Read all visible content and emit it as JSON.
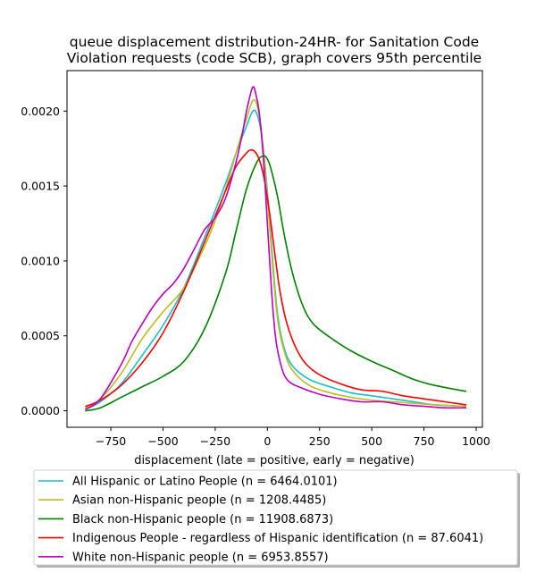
{
  "chart_data": {
    "type": "line",
    "title_lines": [
      "queue displacement distribution-24HR-  for Sanitation Code",
      "Violation  requests (code SCB), graph covers 95th percentile"
    ],
    "xlabel": "displacement (late = positive, early = negative)",
    "ylabel": "",
    "xlim": [
      -960,
      1030
    ],
    "ylim": [
      -0.00011,
      0.00227
    ],
    "x_ticks": [
      -750,
      -500,
      -250,
      0,
      250,
      500,
      750,
      1000
    ],
    "x_tick_labels": [
      "−750",
      "−500",
      "−250",
      "0",
      "250",
      "500",
      "750",
      "1000"
    ],
    "y_ticks": [
      0.0,
      0.0005,
      0.001,
      0.0015,
      0.002
    ],
    "y_tick_labels": [
      "0.0000",
      "0.0005",
      "0.0010",
      "0.0015",
      "0.0020"
    ],
    "grid": false,
    "legend_position": "below",
    "series": [
      {
        "name": "All Hispanic or Latino People (n = 6464.0101)",
        "color": "#17becf",
        "points": [
          [
            -870,
            1e-05
          ],
          [
            -800,
            6e-05
          ],
          [
            -700,
            0.00018
          ],
          [
            -600,
            0.00037
          ],
          [
            -500,
            0.00057
          ],
          [
            -400,
            0.00082
          ],
          [
            -300,
            0.00116
          ],
          [
            -200,
            0.00152
          ],
          [
            -150,
            0.00172
          ],
          [
            -100,
            0.0019
          ],
          [
            -70,
            0.002
          ],
          [
            -50,
            0.00198
          ],
          [
            -30,
            0.00186
          ],
          [
            -10,
            0.00162
          ],
          [
            10,
            0.00128
          ],
          [
            30,
            0.00092
          ],
          [
            50,
            0.00063
          ],
          [
            80,
            0.00042
          ],
          [
            120,
            0.0003
          ],
          [
            200,
            0.00021
          ],
          [
            300,
            0.00016
          ],
          [
            400,
            0.00012
          ],
          [
            500,
            0.0001
          ],
          [
            600,
            8e-05
          ],
          [
            700,
            6e-05
          ],
          [
            800,
            4e-05
          ],
          [
            950,
            3e-05
          ]
        ]
      },
      {
        "name": "Asian non-Hispanic people (n = 1208.4485)",
        "color": "#bcbd22",
        "points": [
          [
            -870,
            2e-05
          ],
          [
            -800,
            8e-05
          ],
          [
            -700,
            0.00025
          ],
          [
            -600,
            0.00048
          ],
          [
            -500,
            0.00066
          ],
          [
            -400,
            0.00082
          ],
          [
            -300,
            0.0011
          ],
          [
            -250,
            0.00127
          ],
          [
            -200,
            0.00148
          ],
          [
            -150,
            0.00172
          ],
          [
            -100,
            0.00195
          ],
          [
            -70,
            0.00207
          ],
          [
            -50,
            0.00204
          ],
          [
            -30,
            0.00188
          ],
          [
            -10,
            0.0016
          ],
          [
            10,
            0.00124
          ],
          [
            30,
            0.00088
          ],
          [
            50,
            0.0006
          ],
          [
            80,
            0.0004
          ],
          [
            120,
            0.00027
          ],
          [
            200,
            0.00017
          ],
          [
            300,
            0.00012
          ],
          [
            400,
            9e-05
          ],
          [
            500,
            7e-05
          ],
          [
            600,
            6e-05
          ],
          [
            700,
            5e-05
          ],
          [
            800,
            4e-05
          ],
          [
            950,
            3e-05
          ]
        ]
      },
      {
        "name": "Black non-Hispanic people (n = 11908.6873)",
        "color": "#008000",
        "points": [
          [
            -870,
            0.0
          ],
          [
            -800,
            2e-05
          ],
          [
            -700,
            9e-05
          ],
          [
            -600,
            0.00016
          ],
          [
            -500,
            0.00023
          ],
          [
            -400,
            0.00033
          ],
          [
            -300,
            0.00055
          ],
          [
            -200,
            0.00092
          ],
          [
            -150,
            0.0012
          ],
          [
            -100,
            0.00148
          ],
          [
            -50,
            0.00166
          ],
          [
            -20,
            0.0017
          ],
          [
            0,
            0.00168
          ],
          [
            20,
            0.0016
          ],
          [
            50,
            0.00142
          ],
          [
            80,
            0.00118
          ],
          [
            120,
            0.00092
          ],
          [
            170,
            0.0007
          ],
          [
            220,
            0.00058
          ],
          [
            300,
            0.00049
          ],
          [
            400,
            0.0004
          ],
          [
            500,
            0.00033
          ],
          [
            600,
            0.00027
          ],
          [
            700,
            0.00021
          ],
          [
            800,
            0.00017
          ],
          [
            950,
            0.00013
          ]
        ]
      },
      {
        "name": "Indigenous People - regardless of Hispanic identification (n = 87.6041)",
        "color": "#ff0000",
        "points": [
          [
            -870,
            3e-05
          ],
          [
            -800,
            7e-05
          ],
          [
            -700,
            0.00017
          ],
          [
            -600,
            0.00032
          ],
          [
            -500,
            0.00052
          ],
          [
            -400,
            0.0008
          ],
          [
            -300,
            0.00113
          ],
          [
            -200,
            0.00147
          ],
          [
            -150,
            0.00163
          ],
          [
            -100,
            0.00172
          ],
          [
            -80,
            0.00174
          ],
          [
            -60,
            0.00173
          ],
          [
            -40,
            0.00168
          ],
          [
            -20,
            0.00158
          ],
          [
            0,
            0.00142
          ],
          [
            20,
            0.00122
          ],
          [
            40,
            0.001
          ],
          [
            60,
            0.0008
          ],
          [
            90,
            0.0006
          ],
          [
            130,
            0.00044
          ],
          [
            180,
            0.00032
          ],
          [
            250,
            0.00024
          ],
          [
            350,
            0.00018
          ],
          [
            450,
            0.00014
          ],
          [
            550,
            0.00013
          ],
          [
            650,
            0.0001
          ],
          [
            750,
            8e-05
          ],
          [
            850,
            6e-05
          ],
          [
            950,
            4e-05
          ]
        ]
      },
      {
        "name": "White non-Hispanic people (n = 6953.8557)",
        "color": "#bf00bf",
        "points": [
          [
            -870,
            1e-05
          ],
          [
            -800,
            8e-05
          ],
          [
            -700,
            0.00031
          ],
          [
            -650,
            0.00046
          ],
          [
            -600,
            0.00058
          ],
          [
            -550,
            0.00069
          ],
          [
            -500,
            0.00078
          ],
          [
            -450,
            0.00085
          ],
          [
            -400,
            0.00095
          ],
          [
            -350,
            0.00108
          ],
          [
            -300,
            0.00121
          ],
          [
            -250,
            0.00129
          ],
          [
            -200,
            0.00142
          ],
          [
            -150,
            0.00166
          ],
          [
            -120,
            0.00185
          ],
          [
            -100,
            0.002
          ],
          [
            -80,
            0.00212
          ],
          [
            -70,
            0.00216
          ],
          [
            -60,
            0.00214
          ],
          [
            -40,
            0.002
          ],
          [
            -20,
            0.0017
          ],
          [
            0,
            0.00125
          ],
          [
            20,
            0.0008
          ],
          [
            40,
            0.00048
          ],
          [
            70,
            0.00028
          ],
          [
            100,
            0.0002
          ],
          [
            150,
            0.00016
          ],
          [
            250,
            0.00011
          ],
          [
            350,
            8e-05
          ],
          [
            450,
            6e-05
          ],
          [
            550,
            6e-05
          ],
          [
            650,
            4e-05
          ],
          [
            750,
            3e-05
          ],
          [
            850,
            2e-05
          ],
          [
            950,
            2e-05
          ]
        ]
      }
    ]
  }
}
